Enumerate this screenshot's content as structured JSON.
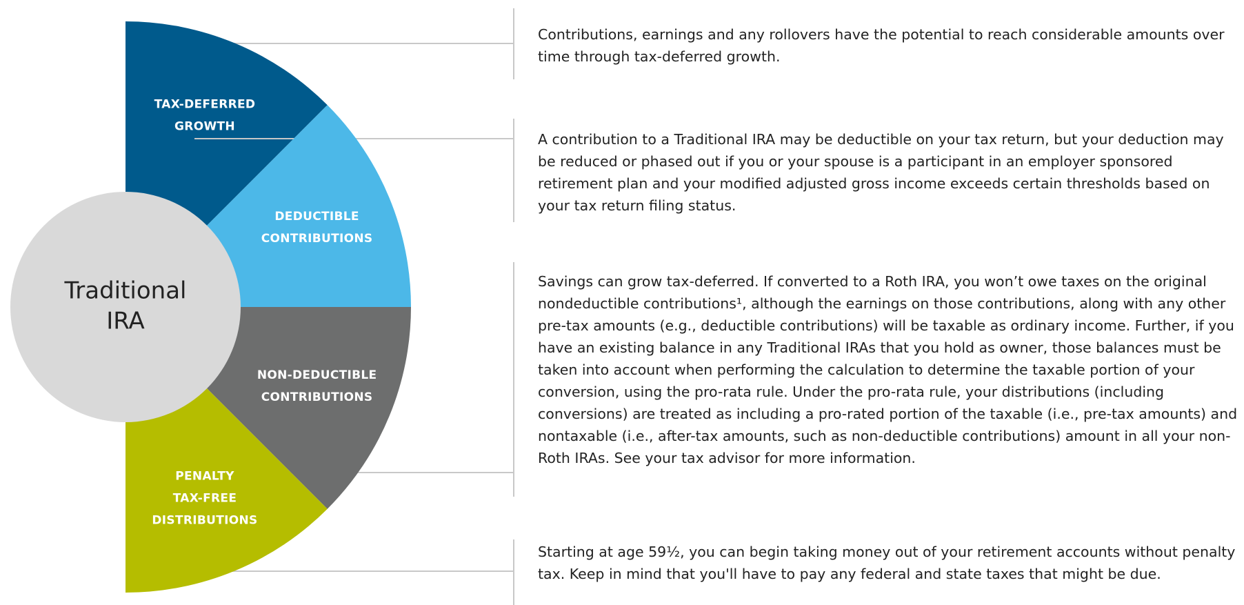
{
  "center_label": [
    "Traditional",
    "IRA"
  ],
  "segments": [
    {
      "label": [
        "TAX-DEFERRED",
        "GROWTH"
      ],
      "color": "#005a8c",
      "text": "Contributions, earnings and any rollovers have the potential to reach considerable amounts over time through tax-deferred growth."
    },
    {
      "label": [
        "DEDUCTIBLE",
        "CONTRIBUTIONS"
      ],
      "color": "#4cb8e8",
      "text": "A contribution to a Traditional IRA may be deductible on your tax return, but your deduction may be reduced or phased out if you or your spouse is a participant in an employer sponsored retirement plan and your modified adjusted gross income exceeds certain thresholds based on your tax return filing status."
    },
    {
      "label": [
        "NON-DEDUCTIBLE",
        "CONTRIBUTIONS"
      ],
      "color": "#6d6e6e",
      "text": "Savings can grow tax-deferred. If converted to a Roth IRA, you won’t owe taxes on the original nondeductible contributions¹, although the earnings on those contributions, along with any other pre-tax amounts (e.g., deductible contributions) will be taxable as ordinary income. Further, if you have an existing balance in any Traditional IRAs that you hold as owner, those balances must be taken into account when performing the calculation to determine the taxable portion of your conversion, using the pro-rata rule. Under the pro-rata rule, your distributions (including conversions) are treated as including a pro-rated portion of the taxable (i.e., pre-tax amounts) and nontaxable (i.e., after-tax amounts, such as non-deductible contributions) amount in all your non-Roth IRAs. See your tax advisor for more information."
    },
    {
      "label": [
        "PENALTY",
        "TAX-FREE",
        "DISTRIBUTIONS"
      ],
      "color": "#b5bd00",
      "text": "Starting at age 59½, you can begin taking money out of your retirement accounts without penalty tax. Keep in mind that you'll have to pay any federal and state taxes that might be due."
    }
  ]
}
